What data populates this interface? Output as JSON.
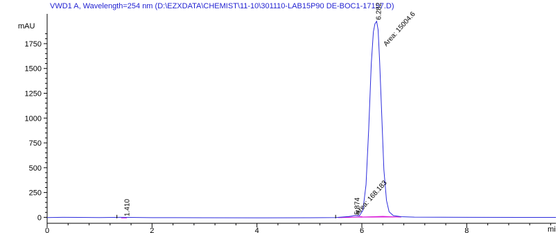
{
  "chart_data": {
    "type": "line",
    "title": "VWD1 A, Wavelength=254 nm (D:\\EZXDATA\\CHEMIST\\11-10\\301110-LAB15P90 DE-BOC1-17157.D)",
    "ylabel": "mAU",
    "xlabel": "mi",
    "xlim": [
      0,
      9.7
    ],
    "ylim": [
      -60,
      2050
    ],
    "x_ticks": [
      0,
      2,
      4,
      6,
      8
    ],
    "y_ticks": [
      0,
      250,
      500,
      750,
      1000,
      1250,
      1500,
      1750
    ],
    "series": [
      {
        "color": "#2b2bdc",
        "x": [
          0,
          0.3,
          0.6,
          1.0,
          1.41,
          2.0,
          3.0,
          4.0,
          5.0,
          5.5,
          5.75,
          5.874,
          5.95,
          6.02,
          6.08,
          6.13,
          6.18,
          6.22,
          6.25,
          6.282,
          6.31,
          6.34,
          6.38,
          6.42,
          6.47,
          6.52,
          6.6,
          6.75,
          7.0,
          8.0,
          9.0,
          9.7
        ],
        "y": [
          -2,
          0,
          -1,
          -2,
          0,
          -3,
          -4,
          -5,
          -4,
          -2,
          8,
          18,
          14,
          70,
          330,
          880,
          1550,
          1870,
          1950,
          1975,
          1890,
          1560,
          1020,
          480,
          170,
          55,
          18,
          6,
          2,
          0,
          -1,
          -1
        ]
      }
    ],
    "baseline_color": "#d81ad8",
    "peaks": [
      {
        "rt_label": "1.410",
        "rt": 1.41
      },
      {
        "rt_label": "5.874",
        "rt": 5.874,
        "area_label": "Area: 168.183"
      },
      {
        "rt_label": "6.282",
        "rt": 6.282,
        "area_label": "Area: 15004.6"
      }
    ]
  }
}
